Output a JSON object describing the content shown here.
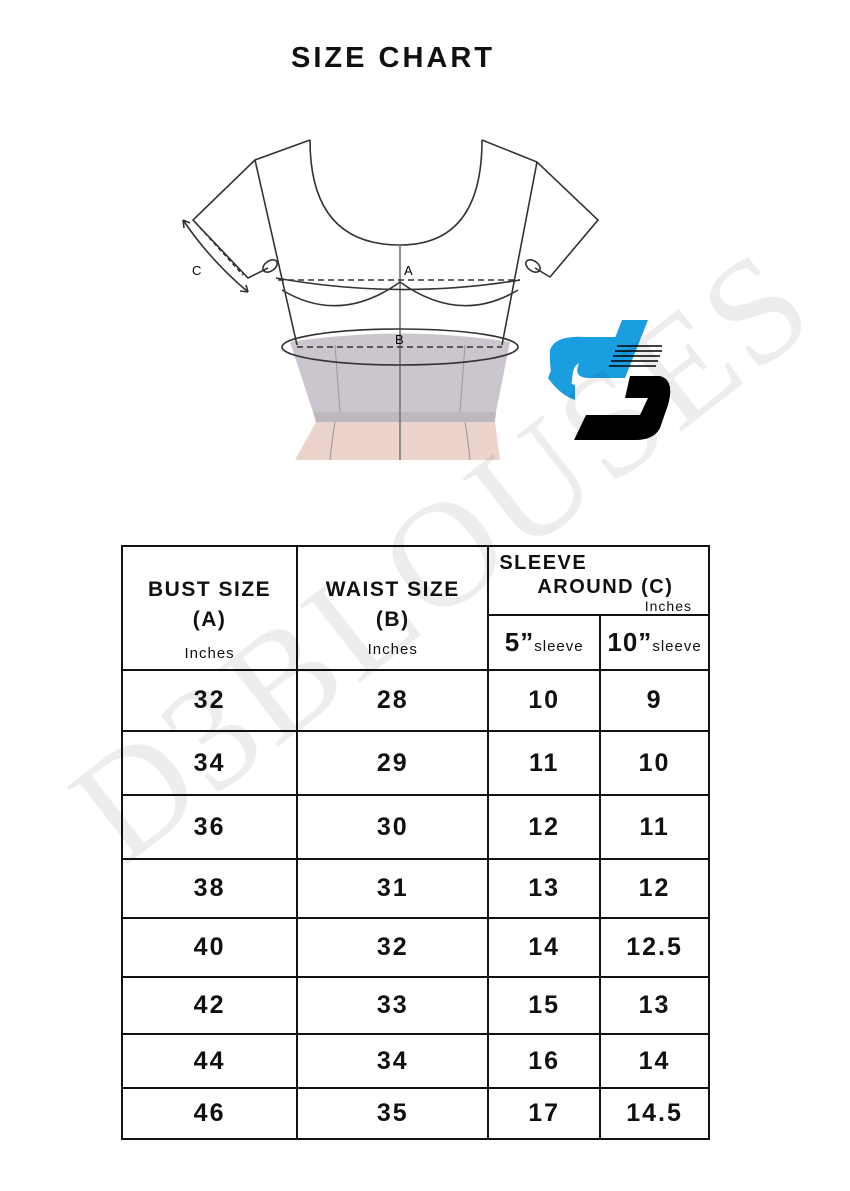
{
  "title": "SIZE CHART",
  "diagram": {
    "label_a": "A",
    "label_b": "B",
    "label_c": "C"
  },
  "watermark": "D3BLOUSES",
  "header": {
    "bust": "BUST SIZE",
    "bust_sub": "(A)",
    "bust_unit": "Inches",
    "waist": "WAIST SIZE",
    "waist_sub": "(B)",
    "waist_unit": "Inches",
    "sleeve_line1": "SLEEVE",
    "sleeve_line2": "AROUND (C)",
    "sleeve_unit": "Inches",
    "col5": "5”",
    "col5_sub": "sleeve",
    "col10": "10”",
    "col10_sub": "sleeve"
  },
  "rows": [
    [
      "32",
      "28",
      "10",
      "9"
    ],
    [
      "34",
      "29",
      "11",
      "10"
    ],
    [
      "36",
      "30",
      "12",
      "11"
    ],
    [
      "38",
      "31",
      "13",
      "12"
    ],
    [
      "40",
      "32",
      "14",
      "12.5"
    ],
    [
      "42",
      "33",
      "15",
      "13"
    ],
    [
      "44",
      "34",
      "16",
      "14"
    ],
    [
      "46",
      "35",
      "17",
      "14.5"
    ]
  ],
  "colors": {
    "logo_blue": "#1a9ee0",
    "logo_black": "#000000",
    "body_gray": "#c9c3cb",
    "skirt_pink": "#e8cfc8"
  }
}
